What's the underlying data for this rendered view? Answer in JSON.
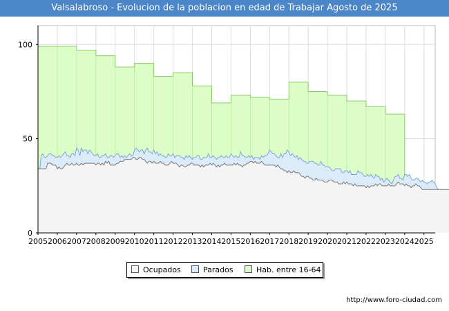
{
  "header": {
    "title": "Valsalabroso - Evolucion de la poblacion en edad de Trabajar Agosto de 2025"
  },
  "footer": {
    "url": "http://www.foro-ciudad.com"
  },
  "colors": {
    "title_bg": "#4a86c8",
    "hab_fill": "#ddfdc8",
    "hab_line": "#8ccc6a",
    "parados_fill": "#dcebfa",
    "parados_line": "#7aa6d8",
    "ocupados_fill": "#f4f4f4",
    "ocupados_line": "#777777"
  },
  "chart_data": {
    "type": "area",
    "title": "Valsalabroso - Evolucion de la poblacion en edad de Trabajar Agosto de 2025",
    "x_ticks": [
      "2005",
      "2006",
      "2007",
      "2008",
      "2009",
      "2010",
      "2011",
      "2012",
      "2013",
      "2014",
      "2015",
      "2016",
      "2017",
      "2018",
      "2019",
      "2020",
      "2021",
      "2022",
      "2023",
      "2024",
      "2025"
    ],
    "y_ticks": [
      "0",
      "50",
      "100"
    ],
    "ylim": [
      0,
      110
    ],
    "xlim": [
      2005,
      2025.58
    ],
    "grid": true,
    "legend_position": "bottom",
    "legend": [
      "Ocupados",
      "Parados",
      "Hab. entre 16-64"
    ],
    "series": [
      {
        "name": "Hab. entre 16-64",
        "type": "step",
        "start_year": 2005,
        "values": [
          99,
          99,
          97,
          94,
          88,
          90,
          83,
          85,
          78,
          69,
          73,
          72,
          71,
          80,
          75,
          73,
          70,
          67,
          63,
          23,
          22
        ]
      },
      {
        "name": "Parados",
        "type": "monthly",
        "start": 2005.0,
        "step": 0.08333,
        "values": [
          34,
          33,
          41,
          42,
          40,
          40,
          41,
          42,
          42,
          41,
          41,
          40,
          40,
          41,
          40,
          41,
          42,
          43,
          41,
          41,
          40,
          42,
          42,
          41,
          45,
          44,
          41,
          45,
          43,
          44,
          44,
          42,
          44,
          43,
          42,
          41,
          41,
          42,
          40,
          40,
          41,
          41,
          42,
          40,
          40,
          41,
          41,
          40,
          41,
          42,
          42,
          40,
          41,
          40,
          41,
          40,
          41,
          42,
          41,
          41,
          44,
          45,
          44,
          43,
          44,
          44,
          42,
          44,
          45,
          43,
          43,
          42,
          44,
          42,
          43,
          41,
          42,
          41,
          41,
          40,
          40,
          42,
          41,
          41,
          42,
          40,
          41,
          41,
          41,
          40,
          40,
          39,
          41,
          40,
          41,
          40,
          39,
          40,
          40,
          41,
          41,
          39,
          39,
          40,
          40,
          40,
          42,
          40,
          40,
          41,
          40,
          39,
          40,
          40,
          41,
          40,
          40,
          41,
          40,
          40,
          42,
          41,
          40,
          41,
          40,
          40,
          43,
          41,
          41,
          40,
          40,
          41,
          40,
          41,
          39,
          40,
          40,
          40,
          39,
          41,
          40,
          41,
          41,
          42,
          44,
          43,
          42,
          42,
          41,
          40,
          40,
          42,
          40,
          42,
          42,
          44,
          43,
          41,
          42,
          41,
          40,
          41,
          39,
          40,
          39,
          38,
          38,
          37,
          37,
          38,
          38,
          38,
          37,
          37,
          36,
          36,
          38,
          36,
          36,
          35,
          35,
          35,
          34,
          33,
          33,
          34,
          34,
          34,
          34,
          32,
          32,
          33,
          33,
          32,
          33,
          31,
          31,
          31,
          31,
          33,
          32,
          32,
          31,
          30,
          30,
          31,
          30,
          31,
          30,
          29,
          31,
          30,
          30,
          28,
          29,
          27,
          28,
          29,
          28,
          27,
          26,
          28,
          30,
          30,
          31,
          29,
          29,
          28,
          31,
          31,
          30,
          31,
          29,
          28,
          28,
          29,
          29,
          28,
          27,
          28,
          27,
          27,
          26,
          27,
          27,
          28,
          27,
          26,
          24,
          23,
          23,
          23,
          23,
          23,
          23,
          23,
          23,
          23,
          23,
          23,
          23,
          23,
          23,
          23,
          23,
          23,
          23,
          23,
          23,
          23,
          23,
          23,
          23,
          22,
          22,
          22,
          22,
          22,
          22,
          22
        ]
      },
      {
        "name": "Ocupados",
        "type": "monthly",
        "start": 2005.0,
        "step": 0.08333,
        "values": [
          34,
          34,
          34,
          34,
          34,
          34,
          37,
          37,
          37,
          36,
          36,
          36,
          34,
          35,
          34,
          34,
          35,
          36,
          37,
          36,
          36,
          37,
          36,
          36,
          37,
          36,
          36,
          37,
          36,
          37,
          37,
          37,
          37,
          37,
          37,
          37,
          36,
          37,
          37,
          36,
          37,
          36,
          38,
          37,
          38,
          36,
          36,
          36,
          36,
          37,
          37,
          38,
          38,
          38,
          39,
          39,
          39,
          39,
          39,
          40,
          40,
          39,
          39,
          40,
          40,
          39,
          39,
          38,
          37,
          38,
          38,
          37,
          38,
          37,
          37,
          37,
          38,
          37,
          37,
          36,
          36,
          36,
          37,
          38,
          37,
          37,
          37,
          36,
          35,
          36,
          36,
          35,
          35,
          36,
          36,
          37,
          37,
          36,
          36,
          36,
          36,
          35,
          36,
          35,
          36,
          36,
          36,
          37,
          36,
          37,
          36,
          35,
          36,
          35,
          36,
          36,
          37,
          36,
          36,
          36,
          36,
          36,
          37,
          36,
          37,
          36,
          36,
          35,
          36,
          36,
          37,
          37,
          38,
          38,
          37,
          38,
          37,
          37,
          37,
          38,
          37,
          36,
          36,
          36,
          36,
          36,
          36,
          36,
          35,
          36,
          35,
          34,
          34,
          33,
          33,
          32,
          33,
          32,
          32,
          33,
          32,
          32,
          32,
          31,
          30,
          30,
          29,
          30,
          30,
          29,
          29,
          28,
          28,
          29,
          28,
          28,
          28,
          28,
          27,
          27,
          27,
          28,
          28,
          28,
          27,
          27,
          27,
          26,
          26,
          26,
          27,
          26,
          27,
          26,
          26,
          26,
          25,
          26,
          25,
          25,
          25,
          25,
          25,
          25,
          24,
          25,
          24,
          25,
          25,
          25,
          26,
          25,
          26,
          26,
          25,
          25,
          25,
          25,
          26,
          25,
          25,
          25,
          25,
          26,
          27,
          26,
          26,
          26,
          25,
          26,
          25,
          25,
          24,
          25,
          25,
          26,
          25,
          25,
          24,
          23,
          23,
          23,
          23,
          23,
          23,
          23,
          23,
          23,
          23,
          23,
          23,
          23,
          23,
          23,
          23,
          23,
          23,
          23,
          23,
          23,
          23,
          23,
          23,
          22,
          22,
          22,
          22,
          22,
          22,
          22,
          21,
          21,
          22,
          22,
          22,
          22
        ]
      }
    ]
  }
}
